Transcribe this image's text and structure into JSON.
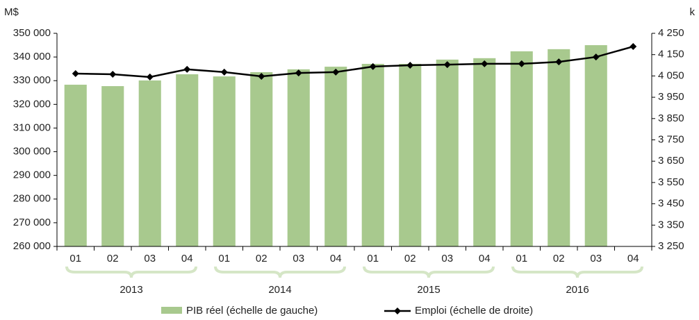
{
  "chart_data": {
    "type": "bar_line",
    "y_unit": "M$",
    "y2_unit": "k",
    "categories": [
      "01",
      "02",
      "03",
      "04",
      "01",
      "02",
      "03",
      "04",
      "01",
      "02",
      "03",
      "04",
      "01",
      "02",
      "03",
      "04"
    ],
    "groups": [
      "2013",
      "2014",
      "2015",
      "2016"
    ],
    "series": [
      {
        "name": "PIB réel (échelle de gauche)",
        "type": "bar",
        "color": "#a8c98e",
        "values": [
          328300,
          327700,
          330100,
          332700,
          331800,
          333600,
          334800,
          335900,
          337100,
          337100,
          338900,
          339500,
          342400,
          343300,
          345000,
          null
        ]
      },
      {
        "name": "Emploi (échelle de droite)",
        "type": "line",
        "axis": "y2",
        "color": "#000000",
        "values": [
          4061,
          4058,
          4045,
          4081,
          4068,
          4048,
          4064,
          4068,
          4094,
          4100,
          4103,
          4107,
          4107,
          4116,
          4139,
          4188
        ]
      }
    ],
    "ylim": [
      260000,
      350000
    ],
    "yticks": [
      {
        "value": 260000,
        "label": "260 000"
      },
      {
        "value": 270000,
        "label": "270 000"
      },
      {
        "value": 280000,
        "label": "280 000"
      },
      {
        "value": 290000,
        "label": "290 000"
      },
      {
        "value": 300000,
        "label": "300 000"
      },
      {
        "value": 310000,
        "label": "310 000"
      },
      {
        "value": 320000,
        "label": "320 000"
      },
      {
        "value": 330000,
        "label": "330 000"
      },
      {
        "value": 340000,
        "label": "340 000"
      },
      {
        "value": 350000,
        "label": "350 000"
      }
    ],
    "y2lim": [
      3250,
      4250
    ],
    "y2ticks": [
      {
        "value": 3250,
        "label": "3 250"
      },
      {
        "value": 3350,
        "label": "3 350"
      },
      {
        "value": 3450,
        "label": "3 450"
      },
      {
        "value": 3550,
        "label": "3 550"
      },
      {
        "value": 3650,
        "label": "3 650"
      },
      {
        "value": 3750,
        "label": "3 750"
      },
      {
        "value": 3850,
        "label": "3 850"
      },
      {
        "value": 3950,
        "label": "3 950"
      },
      {
        "value": 4050,
        "label": "4 050"
      },
      {
        "value": 4150,
        "label": "4 150"
      },
      {
        "value": 4250,
        "label": "4 250"
      }
    ]
  }
}
